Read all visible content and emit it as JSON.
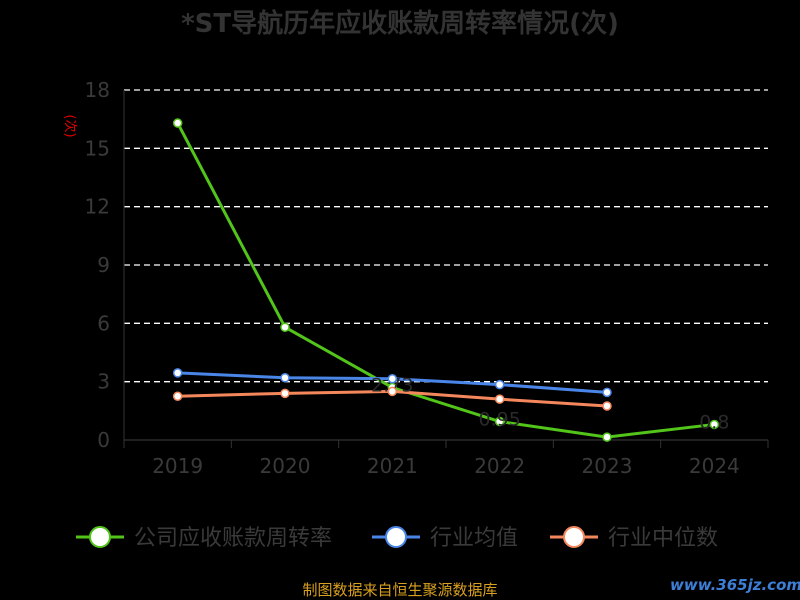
{
  "chart_data": {
    "type": "line",
    "title": "*ST导航历年应收账款周转率情况(次)",
    "ylabel": "(次)",
    "xlabel": "",
    "categories": [
      "2019",
      "2020",
      "2021",
      "2022",
      "2023",
      "2024"
    ],
    "ylim": [
      0,
      18
    ],
    "yticks": [
      "0",
      "3",
      "6",
      "9",
      "12",
      "15",
      "18"
    ],
    "grid": true,
    "legend_position": "bottom",
    "series": [
      {
        "name": "公司应收账款周转率",
        "color": "#52c41a",
        "values": [
          16.3,
          5.8,
          2.7,
          0.95,
          0.15,
          0.8
        ],
        "labels": [
          "",
          "",
          "2.73",
          "0.95",
          "",
          "0.8"
        ]
      },
      {
        "name": "行业均值",
        "color": "#4a86e8",
        "values": [
          3.45,
          3.2,
          3.15,
          2.85,
          2.45,
          null
        ],
        "labels": []
      },
      {
        "name": "行业中位数",
        "color": "#f4885c",
        "values": [
          2.25,
          2.4,
          2.5,
          2.1,
          1.75,
          null
        ],
        "labels": []
      }
    ]
  },
  "footer": {
    "source": "制图数据来自恒生聚源数据库",
    "watermark": "www.365jz.com"
  }
}
